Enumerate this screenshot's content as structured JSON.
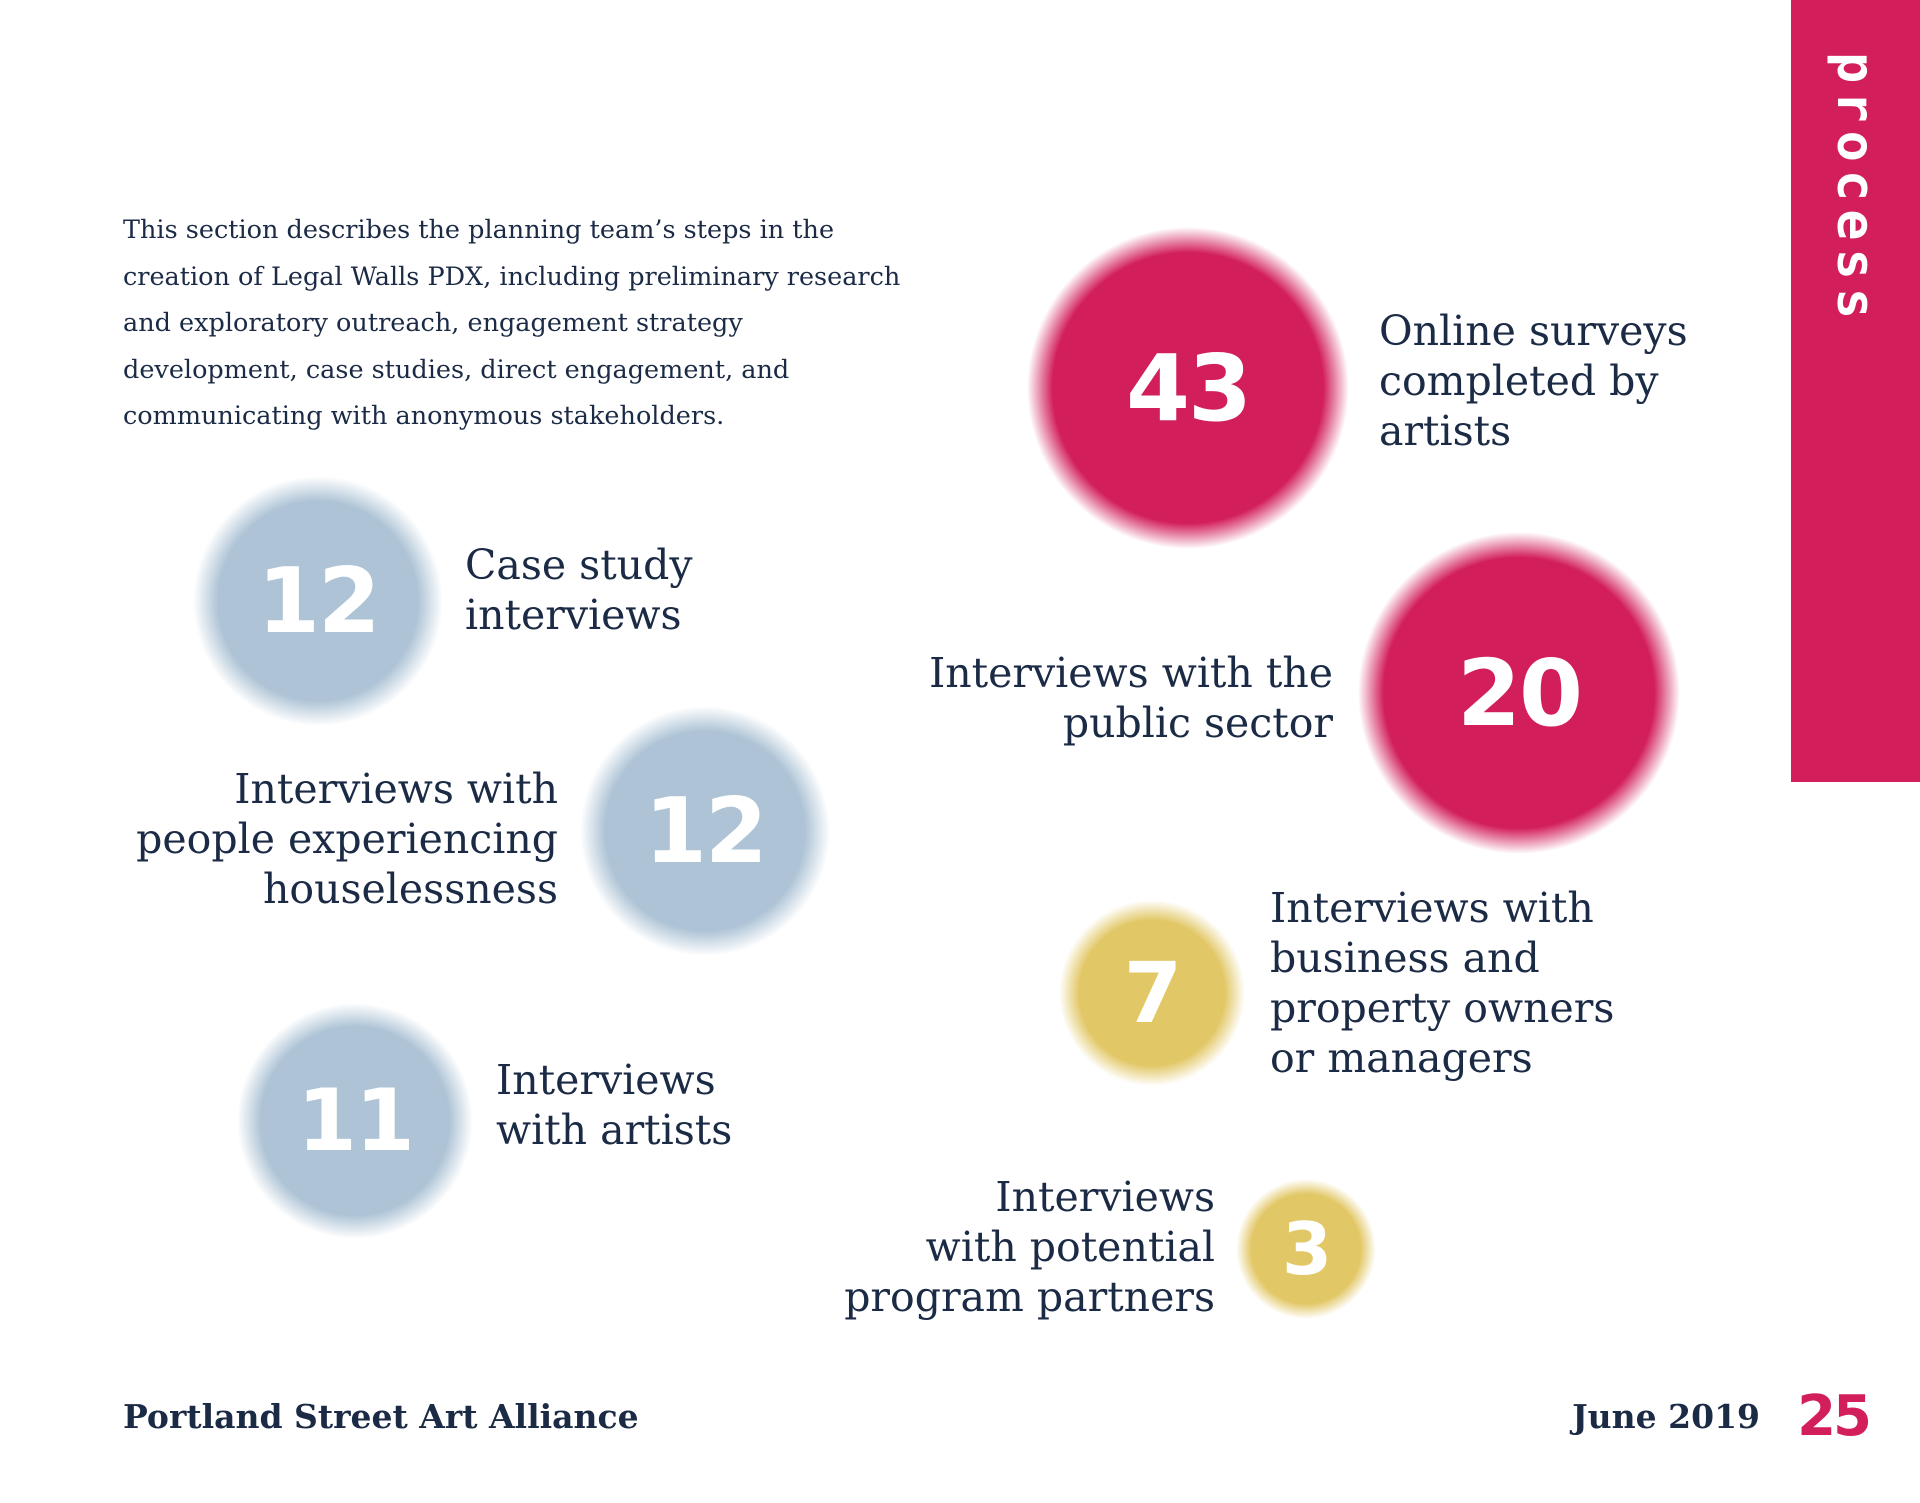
{
  "section_tab": {
    "label": "process"
  },
  "intro": {
    "text": "This section describes the planning team’s steps in the creation of Legal Walls PDX, including preliminary research and exploratory outreach, engagement strategy development, case studies, direct engagement, and communicating with anonymous stakeholders."
  },
  "stats": [
    {
      "value": "12",
      "label": [
        "Case study",
        "interviews"
      ],
      "color": "#aec4d6"
    },
    {
      "value": "12",
      "label": [
        "Interviews with",
        "people experiencing",
        "houselessness"
      ],
      "color": "#aec4d6"
    },
    {
      "value": "11",
      "label": [
        "Interviews",
        "with artists"
      ],
      "color": "#aec4d6"
    },
    {
      "value": "43",
      "label": [
        "Online surveys",
        "completed by",
        "artists"
      ],
      "color": "#d21e5a"
    },
    {
      "value": "20",
      "label": [
        "Interviews with the",
        "public sector"
      ],
      "color": "#d21e5a"
    },
    {
      "value": "7",
      "label": [
        "Interviews with",
        "business and",
        "property owners",
        "or managers"
      ],
      "color": "#e2c766"
    },
    {
      "value": "3",
      "label": [
        "Interviews",
        "with potential",
        "program partners"
      ],
      "color": "#e2c766"
    }
  ],
  "footer": {
    "organization": "Portland Street Art Alliance",
    "date": "June 2019",
    "page_number": "25"
  }
}
